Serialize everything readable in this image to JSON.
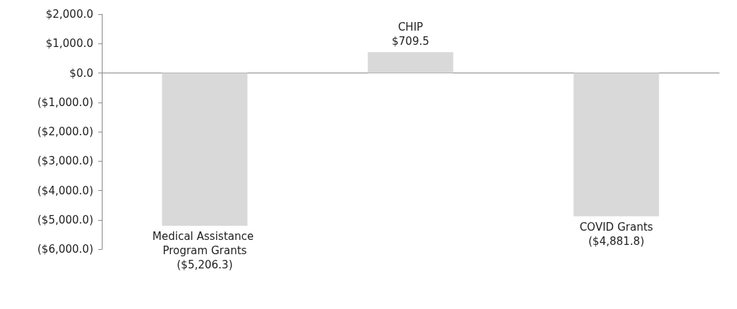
{
  "chart_data": {
    "type": "bar",
    "categories": [
      "Medical Assistance Program Grants",
      "CHIP",
      "COVID Grants"
    ],
    "values": [
      -5206.3,
      709.5,
      -4881.8
    ],
    "value_labels": [
      "($5,206.3)",
      "$709.5",
      "($4,881.8)"
    ],
    "color": "#d9d9d9",
    "ylim": [
      -6000,
      2000
    ],
    "yticks": [
      {
        "value": -6000,
        "label": "($6,000.0)"
      },
      {
        "value": -5000,
        "label": "($5,000.0)"
      },
      {
        "value": -4000,
        "label": "($4,000.0)"
      },
      {
        "value": -3000,
        "label": "($3,000.0)"
      },
      {
        "value": -2000,
        "label": "($2,000.0)"
      },
      {
        "value": -1000,
        "label": "($1,000.0)"
      },
      {
        "value": 0,
        "label": "$0.0"
      },
      {
        "value": 1000,
        "label": "$1,000.0"
      },
      {
        "value": 2000,
        "label": "$2,000.0"
      }
    ]
  }
}
